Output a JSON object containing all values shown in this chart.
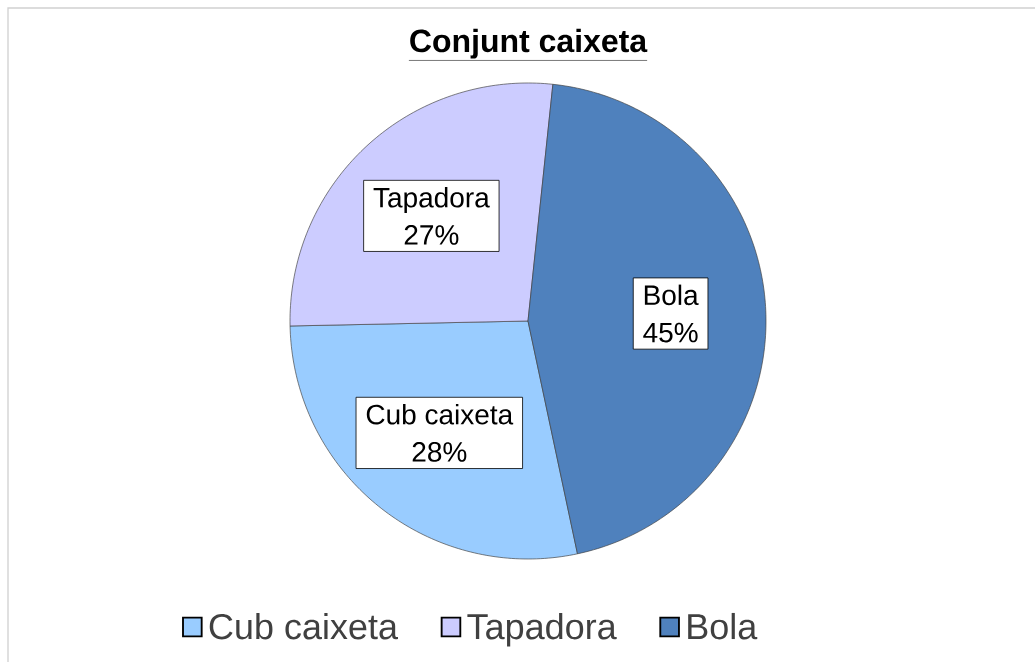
{
  "chart_data": {
    "type": "pie",
    "title": "Conjunt caixeta",
    "categories": [
      "Cub caixeta",
      "Tapadora",
      "Bola"
    ],
    "values": [
      28,
      27,
      45
    ],
    "colors": [
      "#99ccff",
      "#ccccff",
      "#4f81bd"
    ],
    "value_labels": [
      "28%",
      "27%",
      "45%"
    ],
    "legend": "bottom"
  }
}
